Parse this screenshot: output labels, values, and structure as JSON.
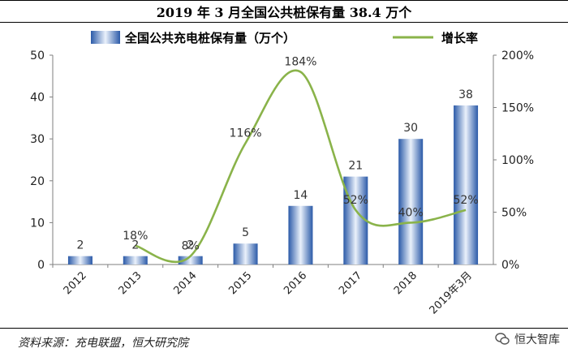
{
  "header": {
    "title": "2019 年 3 月全国公共桩保有量 38.4 万个"
  },
  "footer": {
    "source": "资料来源：充电联盟，恒大研究院",
    "watermark": "恒大智库"
  },
  "chart_data": {
    "type": "bar",
    "categories": [
      "2012",
      "2013",
      "2014",
      "2015",
      "2016",
      "2017",
      "2018",
      "2019年3月"
    ],
    "series": [
      {
        "name": "全国公共充电桩保有量（万个）",
        "type": "bar",
        "axis": "left",
        "values": [
          2,
          2,
          2,
          5,
          14,
          21,
          30,
          38
        ],
        "labels": [
          "2",
          "2",
          "2",
          "5",
          "14",
          "21",
          "30",
          "38"
        ]
      },
      {
        "name": "增长率",
        "type": "line",
        "axis": "right",
        "values": [
          null,
          18,
          8,
          116,
          184,
          52,
          40,
          52
        ],
        "labels": [
          "",
          "18%",
          "8%",
          "116%",
          "184%",
          "52%",
          "40%",
          "52%"
        ]
      }
    ],
    "y_left": {
      "lim": [
        0,
        50
      ],
      "ticks": [
        "0",
        "10",
        "20",
        "30",
        "40",
        "50"
      ]
    },
    "y_right": {
      "lim": [
        0,
        200
      ],
      "ticks": [
        "0%",
        "50%",
        "100%",
        "150%",
        "200%"
      ]
    },
    "legend": {
      "position": "top"
    },
    "grid": false,
    "colors": {
      "bar_dark": "#2b5aa8",
      "bar_light": "#eaf1fb",
      "line": "#8ab34a"
    }
  }
}
